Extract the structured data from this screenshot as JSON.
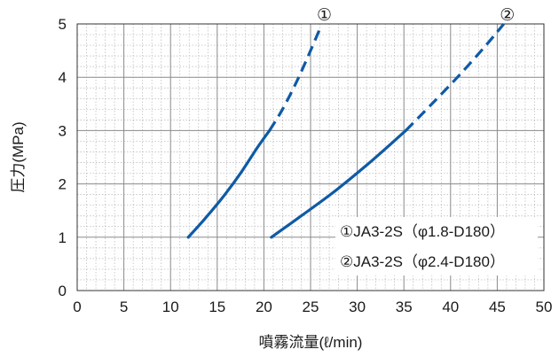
{
  "chart_data": {
    "type": "line",
    "xlabel": "噴霧流量(ℓ/min)",
    "ylabel": "圧力(MPa)",
    "xlim": [
      0,
      50
    ],
    "ylim": [
      0,
      5
    ],
    "x_ticks": [
      "0",
      "5",
      "10",
      "15",
      "20",
      "25",
      "30",
      "35",
      "40",
      "45",
      "50"
    ],
    "y_ticks": [
      "0",
      "1",
      "2",
      "3",
      "4",
      "5"
    ],
    "grid": true,
    "line_color": "#0f5aa5",
    "series": [
      {
        "name": "①JA3-2S（φ1.8-D180）",
        "marker_label": "①",
        "solid": [
          [
            11.9,
            1.0
          ],
          [
            13.6,
            1.33
          ],
          [
            15.6,
            1.75
          ],
          [
            17.5,
            2.2
          ],
          [
            19.3,
            2.68
          ],
          [
            20.6,
            3.0
          ]
        ],
        "dashed": [
          [
            20.6,
            3.0
          ],
          [
            22.0,
            3.4
          ],
          [
            23.6,
            3.95
          ],
          [
            25.0,
            4.5
          ],
          [
            26.1,
            4.95
          ]
        ]
      },
      {
        "name": "②JA3-2S（φ2.4-D180）",
        "marker_label": "②",
        "solid": [
          [
            20.8,
            1.0
          ],
          [
            24.0,
            1.4
          ],
          [
            27.5,
            1.85
          ],
          [
            31.0,
            2.35
          ],
          [
            33.8,
            2.78
          ],
          [
            35.2,
            3.0
          ]
        ],
        "dashed": [
          [
            35.2,
            3.0
          ],
          [
            38.0,
            3.5
          ],
          [
            41.0,
            4.05
          ],
          [
            43.8,
            4.6
          ],
          [
            45.7,
            5.0
          ]
        ]
      }
    ],
    "legend_position": "bottom-right"
  }
}
